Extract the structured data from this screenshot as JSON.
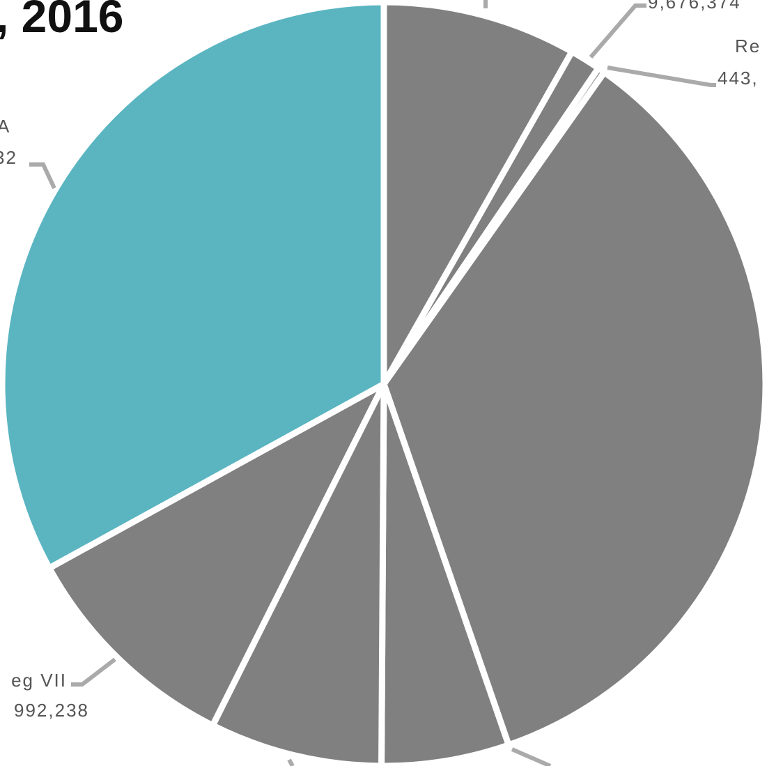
{
  "chart_data": {
    "type": "pie",
    "title": ", 2016",
    "categories": [
      null,
      null,
      null,
      null,
      null,
      null,
      null,
      null
    ],
    "values": [
      8.2,
      1.3,
      0.3,
      34.9,
      5.4,
      7.3,
      9.6,
      33.0
    ],
    "colors": [
      "#808080",
      "#808080",
      "#808080",
      "#808080",
      "#808080",
      "#808080",
      "#808080",
      "#5ab5c1"
    ],
    "annotations": [
      "9,676,374",
      "Re",
      "443,",
      "A",
      "32",
      "eg VII",
      "992,238"
    ]
  }
}
